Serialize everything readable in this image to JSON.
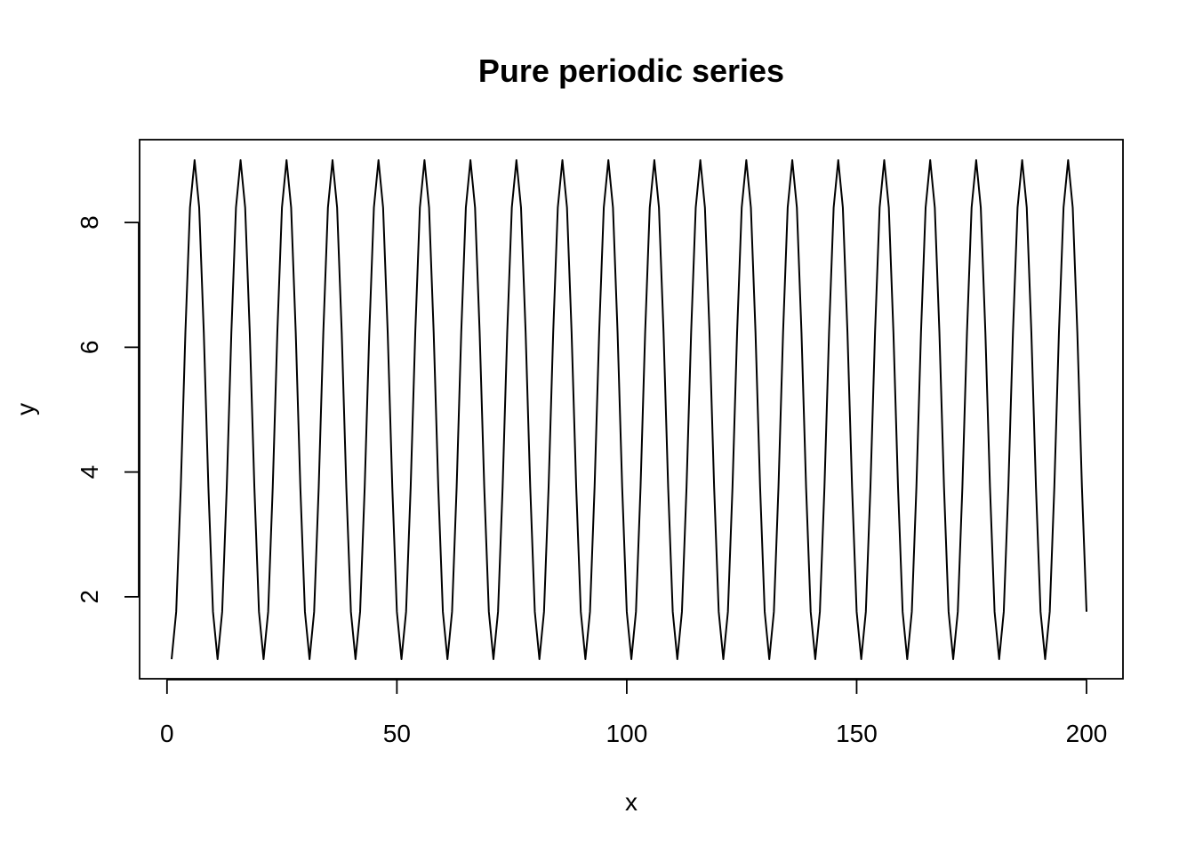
{
  "chart_data": {
    "type": "line",
    "title": "Pure periodic series",
    "xlabel": "x",
    "ylabel": "y",
    "xlim": [
      1,
      200
    ],
    "ylim": [
      1,
      9
    ],
    "grid": false,
    "x_ticks": [
      0,
      50,
      100,
      150,
      200
    ],
    "x_tick_labels": [
      "0",
      "50",
      "100",
      "150",
      "200"
    ],
    "y_ticks": [
      2,
      4,
      6,
      8
    ],
    "y_tick_labels": [
      "2",
      "4",
      "6",
      "8"
    ],
    "series": [
      {
        "period": 10,
        "x_start": 1,
        "x_end": 200,
        "cycle_values": [
          1.0,
          1.76,
          3.76,
          6.24,
          8.24,
          9.0,
          8.24,
          6.24,
          3.76,
          1.76
        ],
        "color": "#000000"
      }
    ]
  }
}
